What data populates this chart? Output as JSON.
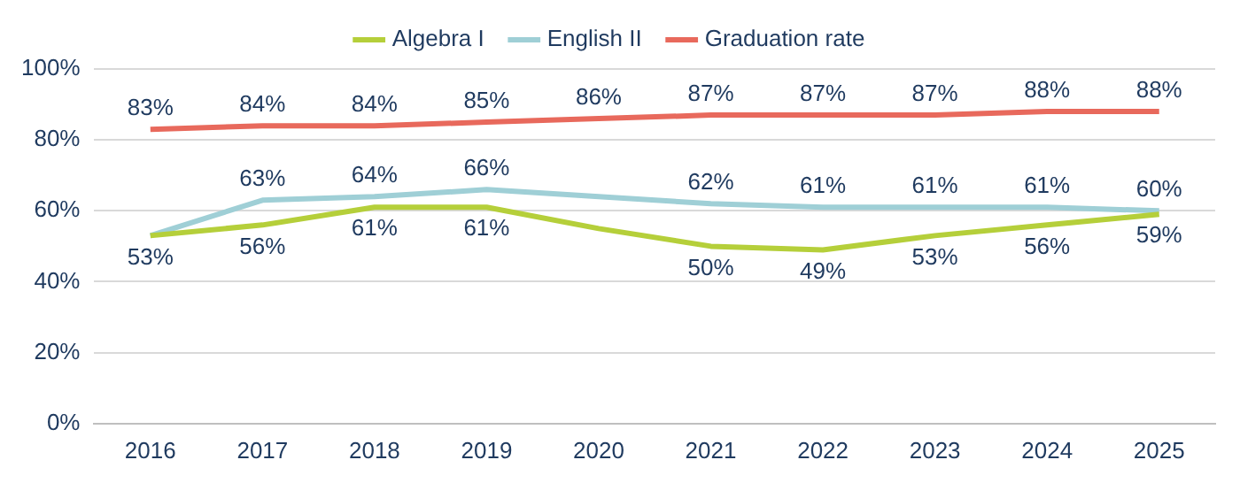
{
  "chart_data": {
    "type": "line",
    "categories": [
      "2016",
      "2017",
      "2018",
      "2019",
      "2020",
      "2021",
      "2022",
      "2023",
      "2024",
      "2025"
    ],
    "series": [
      {
        "name": "Algebra I",
        "color": "#b5cf3a",
        "values": [
          53,
          56,
          61,
          61,
          55,
          50,
          49,
          53,
          56,
          59
        ],
        "value_labels": [
          "53%",
          "56%",
          "61%",
          "61%",
          null,
          "50%",
          "49%",
          "53%",
          "56%",
          "59%"
        ]
      },
      {
        "name": "English II",
        "color": "#9fcfd6",
        "values": [
          53,
          63,
          64,
          66,
          64,
          62,
          61,
          61,
          61,
          60
        ],
        "value_labels": [
          null,
          "63%",
          "64%",
          "66%",
          null,
          "62%",
          "61%",
          "61%",
          "61%",
          "60%"
        ]
      },
      {
        "name": "Graduation rate",
        "color": "#e8695c",
        "values": [
          83,
          84,
          84,
          85,
          86,
          87,
          87,
          87,
          88,
          88
        ],
        "value_labels": [
          "83%",
          "84%",
          "84%",
          "85%",
          "86%",
          "87%",
          "87%",
          "87%",
          "88%",
          "88%"
        ]
      }
    ],
    "ylim": [
      0,
      100
    ],
    "yticks": [
      {
        "value": 0,
        "label": "0%"
      },
      {
        "value": 20,
        "label": "20%"
      },
      {
        "value": 40,
        "label": "40%"
      },
      {
        "value": 60,
        "label": "60%"
      },
      {
        "value": 80,
        "label": "80%"
      },
      {
        "value": 100,
        "label": "100%"
      }
    ],
    "grid": "y",
    "legend": "top",
    "marker": "none",
    "line_style": "solid"
  }
}
